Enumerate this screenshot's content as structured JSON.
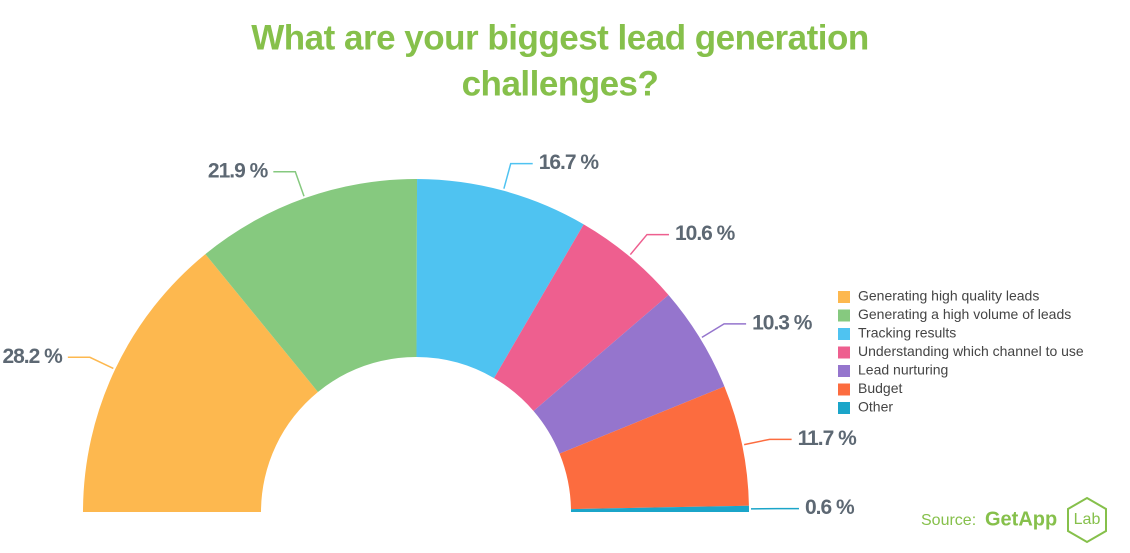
{
  "chart_data": {
    "type": "half-donut",
    "title": [
      "What are your biggest lead generation",
      "challenges?"
    ],
    "categories": [
      "Generating high quality leads",
      "Generating a high volume of leads",
      "Tracking results",
      "Understanding which channel to use",
      "Lead nurturing",
      "Budget",
      "Other"
    ],
    "values": [
      28.2,
      21.9,
      16.7,
      10.6,
      10.3,
      11.7,
      0.6
    ],
    "value_labels": [
      "28.2 %",
      "21.9 %",
      "16.7 %",
      "10.6 %",
      "10.3 %",
      "11.7 %",
      "0.6 %"
    ],
    "colors": [
      "#fdb84f",
      "#86c97f",
      "#4fc3f1",
      "#ee5f8f",
      "#9575cd",
      "#fc6c3f",
      "#1ba5c9"
    ],
    "legend": "right",
    "source_label": "Source:",
    "source_name": "GetApp",
    "source_badge": "Lab"
  }
}
